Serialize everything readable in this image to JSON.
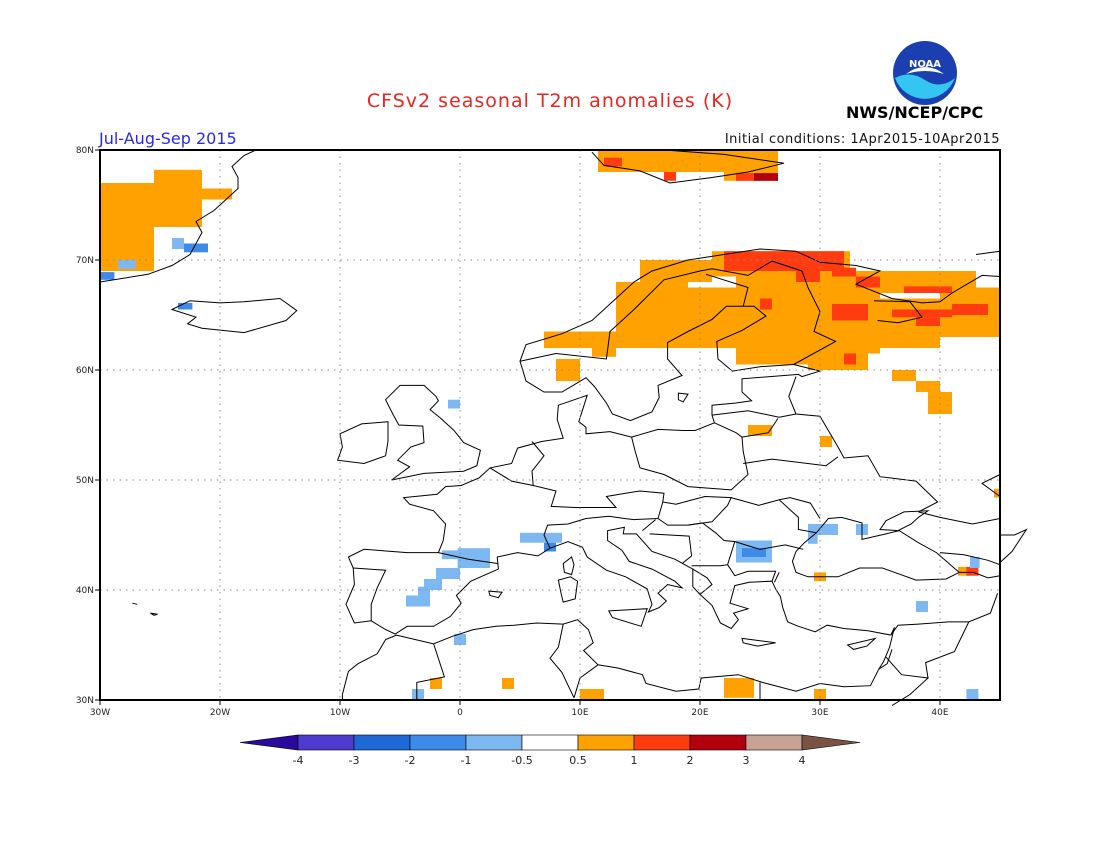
{
  "header": {
    "title": "CFSv2 seasonal T2m anomalies (K)",
    "period": "Jul-Aug-Sep 2015",
    "initial_conditions": "Initial conditions: 1Apr2015-10Apr2015",
    "agency": "NWS/NCEP/CPC",
    "logo_text": "NOAA"
  },
  "map": {
    "lon_range": [
      -30,
      45
    ],
    "lat_range": [
      30,
      80
    ],
    "lon_ticks": [
      "30W",
      "20W",
      "10W",
      "0",
      "10E",
      "20E",
      "30E",
      "40E"
    ],
    "lat_ticks": [
      "30N",
      "40N",
      "50N",
      "60N",
      "70N",
      "80N"
    ],
    "grid": "dotted"
  },
  "colorbar": {
    "labels": [
      "-4",
      "-3",
      "-2",
      "-1",
      "-0.5",
      "0.5",
      "1",
      "2",
      "3",
      "4"
    ],
    "colors": [
      "#2a0a9e",
      "#4e3ccf",
      "#1f69d6",
      "#3c8be8",
      "#7db8f3",
      "#ffffff",
      "#ffa100",
      "#ff3c0f",
      "#b3000e",
      "#c8a393",
      "#7a5244"
    ]
  }
}
